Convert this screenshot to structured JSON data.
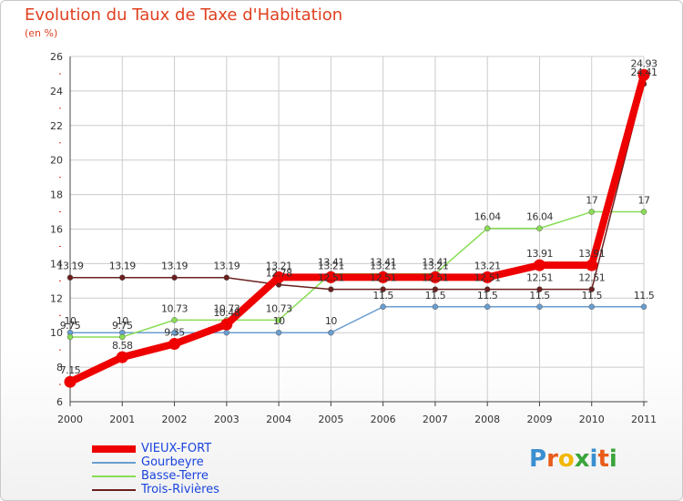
{
  "title": "Evolution du Taux de Taxe d'Habitation",
  "subtitle": "(en %)",
  "colors": {
    "title": "#e04020",
    "grid": "#cccccc",
    "axis": "#444444",
    "legend_text": "#1a44dd"
  },
  "logo": {
    "text": "Proxiti",
    "letters": [
      "P",
      "r",
      "o",
      "x",
      "i",
      "t",
      "i"
    ],
    "colors": [
      "#3a8fd0",
      "#e85c1a",
      "#f2b705",
      "#3aa53a",
      "#3a8fd0",
      "#e85c1a",
      "#3aa53a"
    ]
  },
  "chart_data": {
    "type": "line",
    "title": "Evolution du Taux de Taxe d'Habitation",
    "ylabel": "(en %)",
    "xlabel": "",
    "categories": [
      "2000",
      "2001",
      "2002",
      "2003",
      "2004",
      "2005",
      "2006",
      "2007",
      "2008",
      "2009",
      "2010",
      "2011"
    ],
    "ylim": [
      6,
      26
    ],
    "yticks": [
      6,
      8,
      10,
      12,
      14,
      16,
      18,
      20,
      22,
      24,
      26
    ],
    "grid": true,
    "legend_position": "bottom-left",
    "series": [
      {
        "name": "VIEUX-FORT",
        "color": "#ee0000",
        "emphasis": true,
        "values": [
          7.15,
          8.58,
          9.35,
          10.48,
          13.21,
          13.21,
          13.21,
          13.21,
          13.21,
          13.91,
          13.91,
          24.93
        ],
        "labels": [
          "7.15",
          "8.58",
          "9.35",
          "10.48",
          "13.21",
          "13.21",
          "13.21",
          "13.21",
          "13.21",
          "13.91",
          "13.91",
          "24.93"
        ]
      },
      {
        "name": "Gourbeyre",
        "color": "#6a9ed0",
        "emphasis": false,
        "values": [
          10,
          10,
          10,
          10,
          10,
          10,
          11.5,
          11.5,
          11.5,
          11.5,
          11.5,
          11.5
        ],
        "labels": [
          "10",
          "10",
          "",
          "",
          "10",
          "10",
          "11.5",
          "11.5",
          "11.5",
          "11.5",
          "11.5",
          "11.5"
        ]
      },
      {
        "name": "Basse-Terre",
        "color": "#88dd55",
        "emphasis": false,
        "values": [
          9.75,
          9.75,
          10.73,
          10.73,
          10.73,
          13.41,
          13.41,
          13.41,
          16.04,
          16.04,
          17,
          17
        ],
        "labels": [
          "9.75",
          "9.75",
          "10.73",
          "10.73",
          "10.73",
          "13.41",
          "13.41",
          "13.41",
          "16.04",
          "16.04",
          "17",
          "17"
        ]
      },
      {
        "name": "Trois-Rivières",
        "color": "#6b1f1f",
        "emphasis": false,
        "values": [
          13.19,
          13.19,
          13.19,
          13.19,
          12.78,
          12.51,
          12.51,
          12.51,
          12.51,
          12.51,
          12.51,
          24.41
        ],
        "labels": [
          "13.19",
          "13.19",
          "13.19",
          "13.19",
          "12.78",
          "12.51",
          "12.51",
          "12.51",
          "12.51",
          "12.51",
          "12.51",
          "24.41"
        ]
      }
    ]
  }
}
